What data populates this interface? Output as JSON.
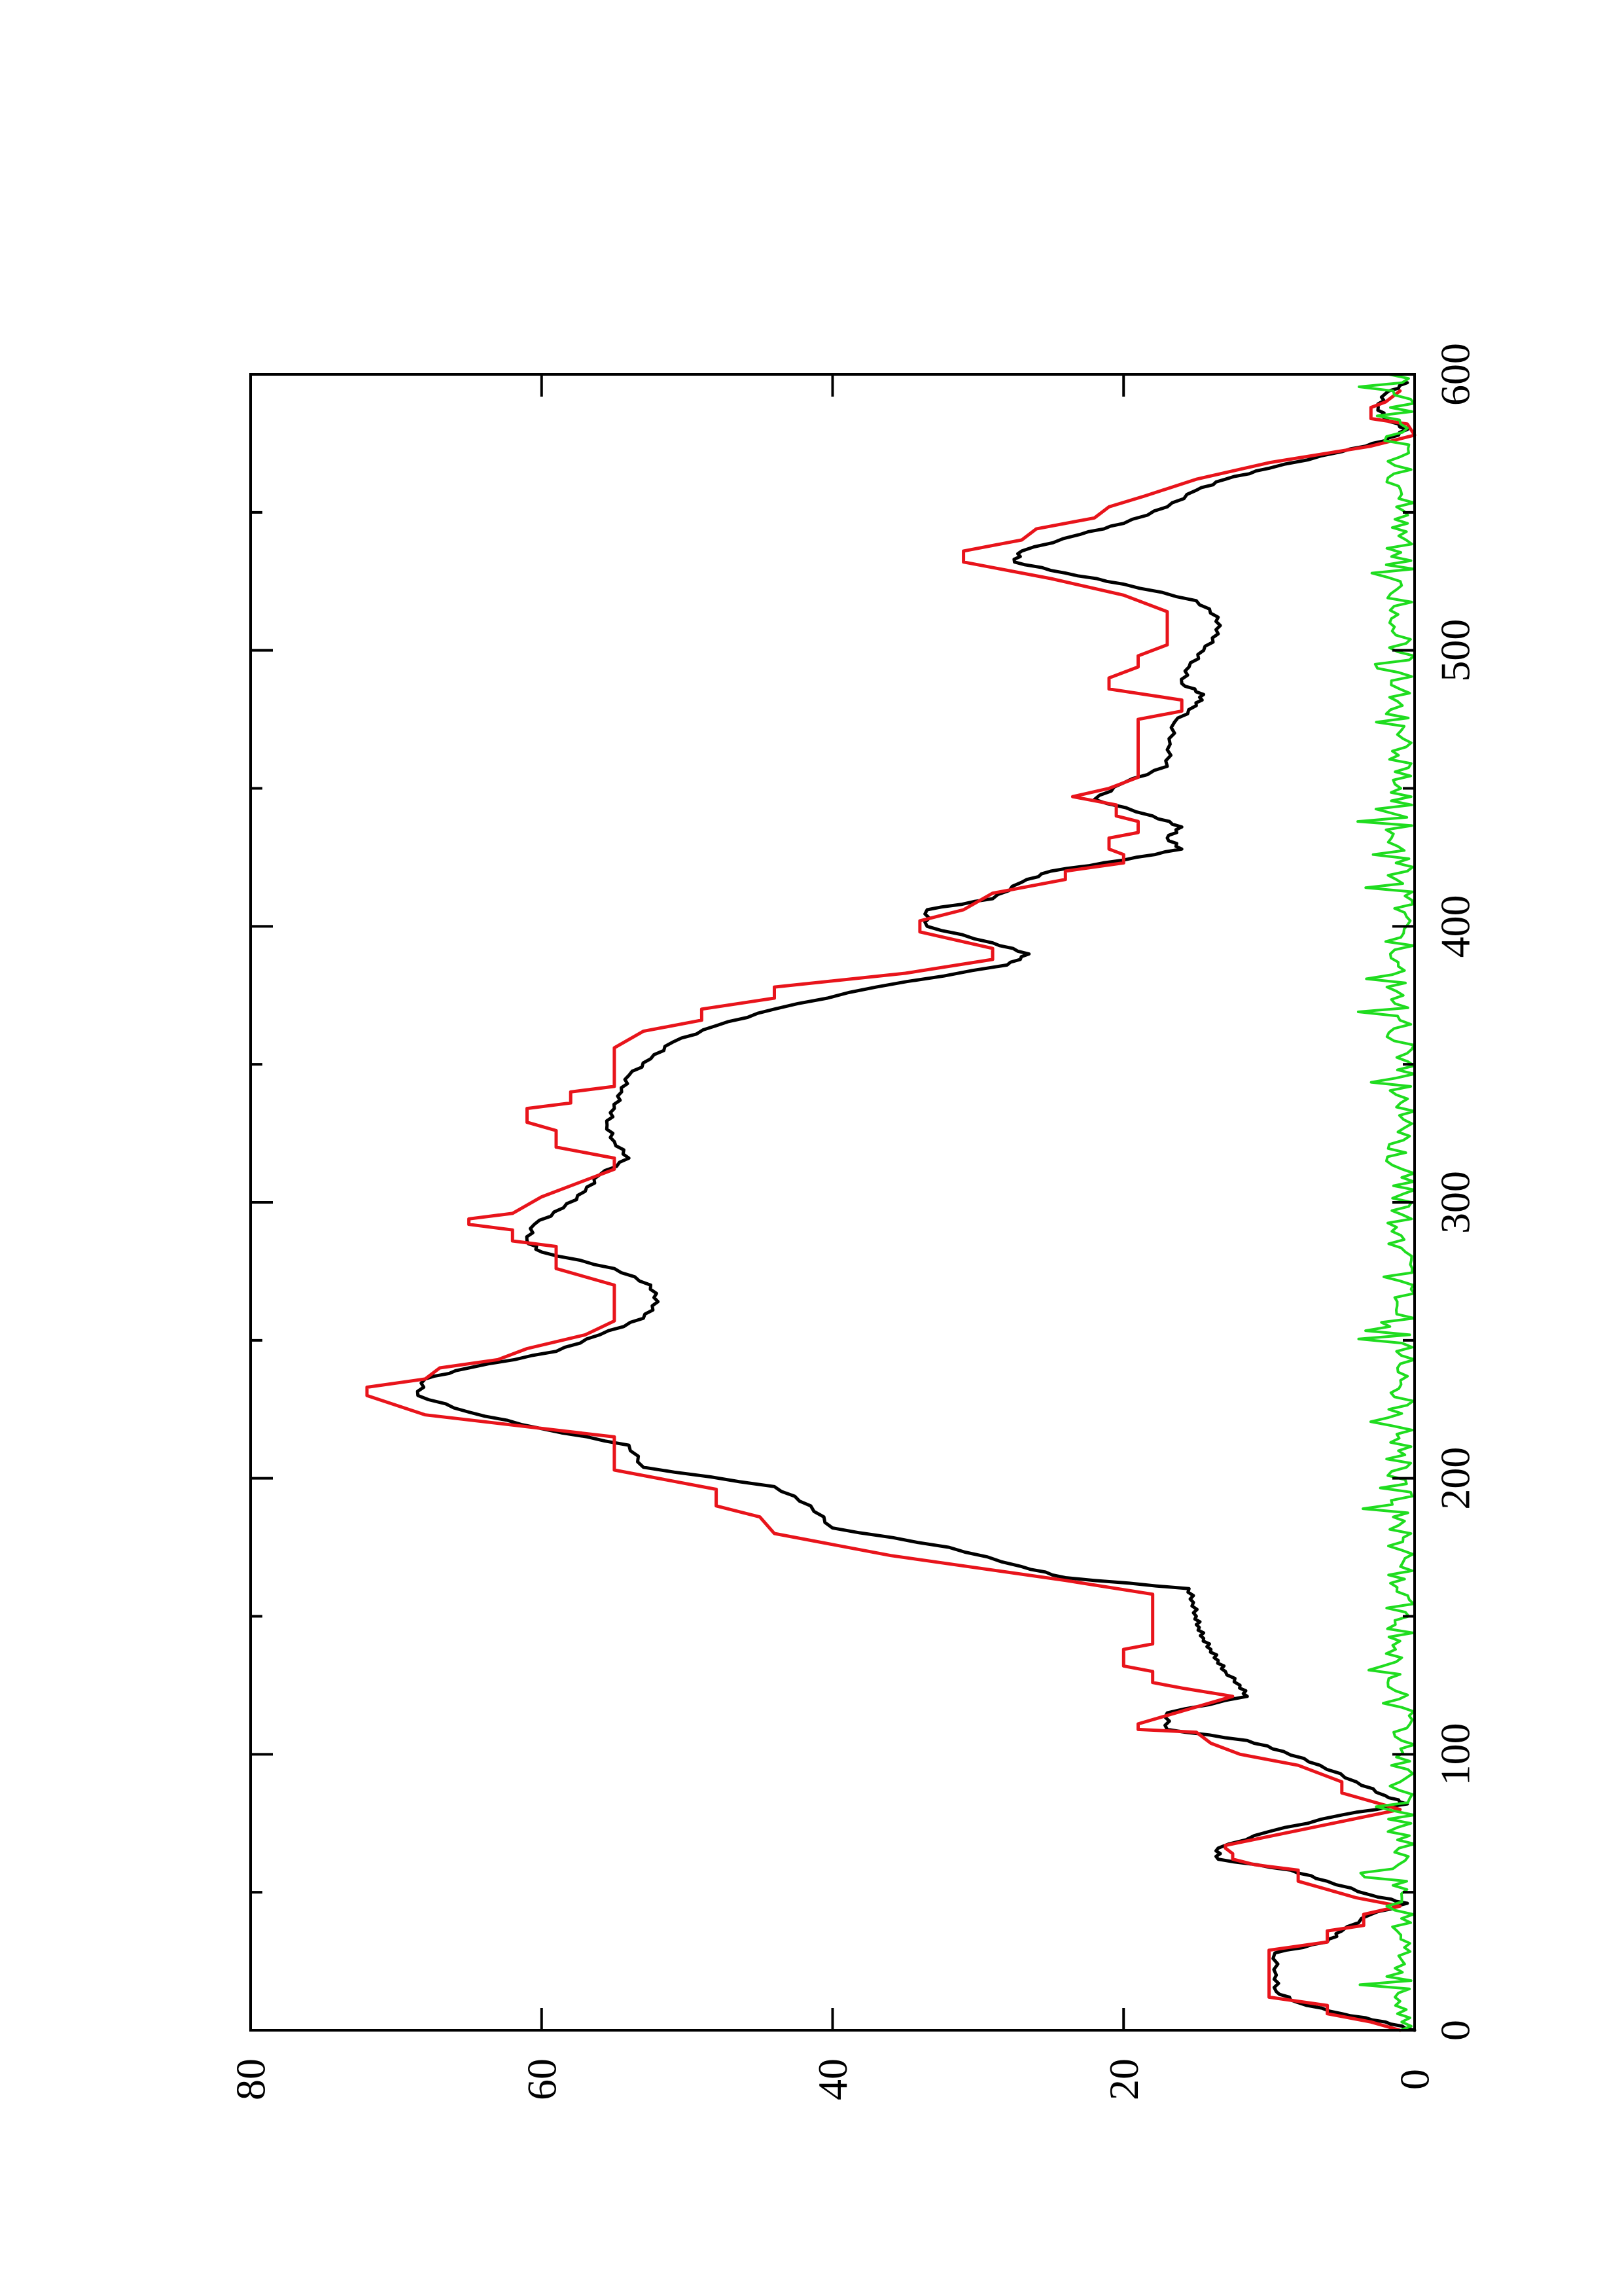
{
  "chart_data": {
    "type": "line",
    "orientation": "rotated-90-counterclockwise",
    "title": "",
    "xlabel": "",
    "ylabel": "",
    "xlim": [
      0,
      600
    ],
    "ylim": [
      0,
      80
    ],
    "x_ticks": [
      0,
      100,
      200,
      300,
      400,
      500,
      600
    ],
    "x_tick_labels": [
      "0",
      "100",
      "200",
      "300",
      "400",
      "500",
      "600"
    ],
    "x_minor_ticks": [
      50,
      150,
      250,
      350,
      450,
      550
    ],
    "y_ticks": [
      0,
      20,
      40,
      60,
      80
    ],
    "y_tick_labels": [
      "0",
      "20",
      "40",
      "60",
      "80"
    ],
    "grid": false,
    "legend": "none",
    "series": [
      {
        "color": "#000000",
        "style": "smooth",
        "points": [
          [
            0,
            0
          ],
          [
            3,
            2
          ],
          [
            6,
            5
          ],
          [
            10,
            8
          ],
          [
            14,
            9.5
          ],
          [
            20,
            9.5
          ],
          [
            28,
            9.6
          ],
          [
            32,
            6
          ],
          [
            36,
            5
          ],
          [
            42,
            3
          ],
          [
            46,
            0.5
          ],
          [
            49,
            3
          ],
          [
            54,
            6
          ],
          [
            58,
            8.5
          ],
          [
            62,
            13.5
          ],
          [
            66,
            13.5
          ],
          [
            72,
            10
          ],
          [
            78,
            5
          ],
          [
            82,
            0.5
          ],
          [
            85,
            2
          ],
          [
            90,
            4
          ],
          [
            96,
            6.5
          ],
          [
            101,
            9
          ],
          [
            105,
            11.5
          ],
          [
            109,
            17
          ],
          [
            115,
            17
          ],
          [
            121,
            11.5
          ],
          [
            125,
            12
          ],
          [
            130,
            13
          ],
          [
            134,
            13.5
          ],
          [
            138,
            14
          ],
          [
            142,
            14.5
          ],
          [
            146,
            14.8
          ],
          [
            150,
            15
          ],
          [
            155,
            15.2
          ],
          [
            160,
            15.5
          ],
          [
            164,
            24
          ],
          [
            168,
            27
          ],
          [
            175,
            32
          ],
          [
            182,
            40
          ],
          [
            190,
            41.5
          ],
          [
            197,
            44
          ],
          [
            204,
            53
          ],
          [
            212,
            54
          ],
          [
            218,
            60
          ],
          [
            224,
            65
          ],
          [
            230,
            68.5
          ],
          [
            236,
            68
          ],
          [
            240,
            65
          ],
          [
            246,
            59
          ],
          [
            252,
            56
          ],
          [
            258,
            53
          ],
          [
            264,
            52
          ],
          [
            270,
            52.5
          ],
          [
            276,
            55
          ],
          [
            282,
            60
          ],
          [
            286,
            61
          ],
          [
            292,
            60.5
          ],
          [
            298,
            58.5
          ],
          [
            304,
            57
          ],
          [
            310,
            56
          ],
          [
            316,
            54
          ],
          [
            322,
            55
          ],
          [
            328,
            55.5
          ],
          [
            334,
            55
          ],
          [
            340,
            54.5
          ],
          [
            346,
            54
          ],
          [
            352,
            52.5
          ],
          [
            358,
            51
          ],
          [
            364,
            48
          ],
          [
            370,
            44
          ],
          [
            378,
            37
          ],
          [
            386,
            28
          ],
          [
            390,
            26.5
          ],
          [
            394,
            29
          ],
          [
            400,
            33.5
          ],
          [
            406,
            33.5
          ],
          [
            410,
            29
          ],
          [
            416,
            27
          ],
          [
            420,
            25
          ],
          [
            424,
            20
          ],
          [
            428,
            16
          ],
          [
            432,
            17
          ],
          [
            436,
            16
          ],
          [
            440,
            18
          ],
          [
            446,
            22
          ],
          [
            452,
            20
          ],
          [
            458,
            17
          ],
          [
            466,
            16.8
          ],
          [
            474,
            16.5
          ],
          [
            480,
            15
          ],
          [
            484,
            14.5
          ],
          [
            488,
            16
          ],
          [
            494,
            15.5
          ],
          [
            500,
            14.5
          ],
          [
            506,
            13.5
          ],
          [
            512,
            13.5
          ],
          [
            518,
            15
          ],
          [
            524,
            20
          ],
          [
            528,
            24
          ],
          [
            532,
            27.5
          ],
          [
            536,
            27
          ],
          [
            542,
            23
          ],
          [
            546,
            20
          ],
          [
            552,
            17
          ],
          [
            558,
            15
          ],
          [
            562,
            13
          ],
          [
            566,
            10
          ],
          [
            572,
            5
          ],
          [
            576,
            2
          ],
          [
            580,
            0.5
          ],
          [
            584,
            2
          ],
          [
            588,
            2.5
          ],
          [
            593,
            2
          ],
          [
            597,
            0.5
          ]
        ]
      },
      {
        "color": "#e8141b",
        "style": "step",
        "points": [
          [
            0,
            1
          ],
          [
            3,
            3
          ],
          [
            6,
            6
          ],
          [
            9,
            6
          ],
          [
            12,
            10
          ],
          [
            29,
            10
          ],
          [
            32,
            6
          ],
          [
            36,
            6
          ],
          [
            38,
            3.5
          ],
          [
            42,
            3.5
          ],
          [
            45,
            1
          ],
          [
            48,
            4
          ],
          [
            51,
            6
          ],
          [
            54,
            8
          ],
          [
            58,
            8
          ],
          [
            60,
            11
          ],
          [
            62,
            12.5
          ],
          [
            64,
            12.5
          ],
          [
            66,
            13
          ],
          [
            67,
            13
          ],
          [
            80,
            1
          ],
          [
            83,
            3
          ],
          [
            86,
            5
          ],
          [
            90,
            5
          ],
          [
            96,
            8
          ],
          [
            100,
            12
          ],
          [
            104,
            14
          ],
          [
            108,
            15
          ],
          [
            109,
            19
          ],
          [
            111,
            19
          ],
          [
            121,
            12.5
          ],
          [
            124,
            16
          ],
          [
            126,
            18
          ],
          [
            130,
            18
          ],
          [
            132,
            20
          ],
          [
            138,
            20
          ],
          [
            140,
            18
          ],
          [
            158,
            18
          ],
          [
            163,
            24
          ],
          [
            166,
            28
          ],
          [
            172,
            36
          ],
          [
            180,
            44
          ],
          [
            186,
            45
          ],
          [
            190,
            48
          ],
          [
            196,
            48
          ],
          [
            203,
            55
          ],
          [
            215,
            55
          ],
          [
            223,
            68
          ],
          [
            230,
            72
          ],
          [
            233,
            72
          ],
          [
            236,
            68
          ],
          [
            240,
            67
          ],
          [
            243,
            63
          ],
          [
            247,
            61
          ],
          [
            252,
            57
          ],
          [
            257,
            55
          ],
          [
            270,
            55
          ],
          [
            276,
            59
          ],
          [
            284,
            59
          ],
          [
            286,
            62
          ],
          [
            290,
            62
          ],
          [
            292,
            65
          ],
          [
            294,
            65
          ],
          [
            296,
            62
          ],
          [
            302,
            60
          ],
          [
            308,
            57
          ],
          [
            312,
            55
          ],
          [
            316,
            55
          ],
          [
            320,
            59
          ],
          [
            326,
            59
          ],
          [
            329,
            61
          ],
          [
            334,
            61
          ],
          [
            336,
            58
          ],
          [
            340,
            58
          ],
          [
            342,
            55
          ],
          [
            356,
            55
          ],
          [
            362,
            53
          ],
          [
            366,
            49
          ],
          [
            370,
            49
          ],
          [
            374,
            44
          ],
          [
            378,
            44
          ],
          [
            383,
            35
          ],
          [
            388,
            29
          ],
          [
            392,
            29
          ],
          [
            398,
            34
          ],
          [
            402,
            34
          ],
          [
            406,
            31
          ],
          [
            412,
            29
          ],
          [
            417,
            24
          ],
          [
            420,
            24
          ],
          [
            423,
            20
          ],
          [
            426,
            20
          ],
          [
            428,
            21
          ],
          [
            432,
            21
          ],
          [
            434,
            19
          ],
          [
            438,
            19
          ],
          [
            440,
            20.5
          ],
          [
            444,
            20.5
          ],
          [
            447,
            23.5
          ],
          [
            450,
            21
          ],
          [
            454,
            19
          ],
          [
            475,
            19
          ],
          [
            478,
            16
          ],
          [
            482,
            16
          ],
          [
            486,
            21
          ],
          [
            490,
            21
          ],
          [
            494,
            19
          ],
          [
            498,
            19
          ],
          [
            502,
            17
          ],
          [
            514,
            17
          ],
          [
            520,
            20
          ],
          [
            526,
            25
          ],
          [
            532,
            31
          ],
          [
            536,
            31
          ],
          [
            540,
            27
          ],
          [
            544,
            26
          ],
          [
            548,
            22
          ],
          [
            552,
            21
          ],
          [
            556,
            18.5
          ],
          [
            562,
            15
          ],
          [
            568,
            10
          ],
          [
            574,
            3
          ],
          [
            578,
            0
          ],
          [
            582,
            0.5
          ],
          [
            584,
            3
          ],
          [
            588,
            3
          ],
          [
            590,
            2
          ],
          [
            594,
            1
          ]
        ]
      },
      {
        "color": "#1fdc1f",
        "style": "noise",
        "amplitude": 2.5,
        "x_range": [
          0,
          600
        ],
        "note_hidden": true
      }
    ]
  }
}
